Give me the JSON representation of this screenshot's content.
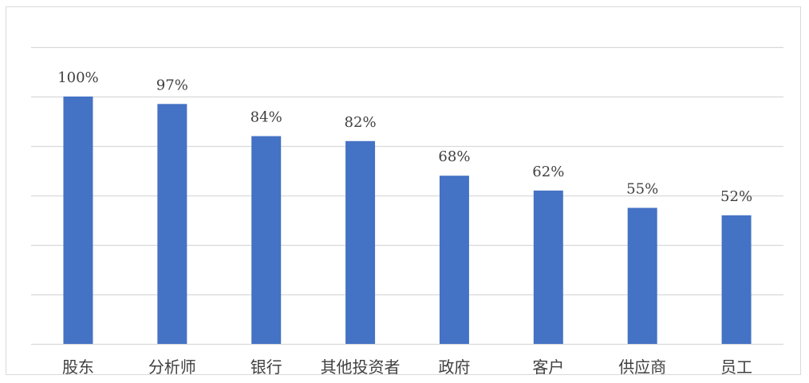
{
  "chart_data": {
    "type": "bar",
    "categories": [
      "股东",
      "分析师",
      "银行",
      "其他投资者",
      "政府",
      "客户",
      "供应商",
      "员工"
    ],
    "values": [
      100,
      97,
      84,
      82,
      68,
      62,
      55,
      52
    ],
    "data_labels": [
      "100%",
      "97%",
      "84%",
      "82%",
      "68%",
      "62%",
      "55%",
      "52%"
    ],
    "unit": "%",
    "title": "",
    "xlabel": "",
    "ylabel": "",
    "ylim": [
      0,
      120
    ],
    "y_gridline_step": 20,
    "grid": true,
    "y_axis_labels_shown": false,
    "legend": "none",
    "bar_color": "#4472C4",
    "grid_color": "#d9d9d9"
  }
}
